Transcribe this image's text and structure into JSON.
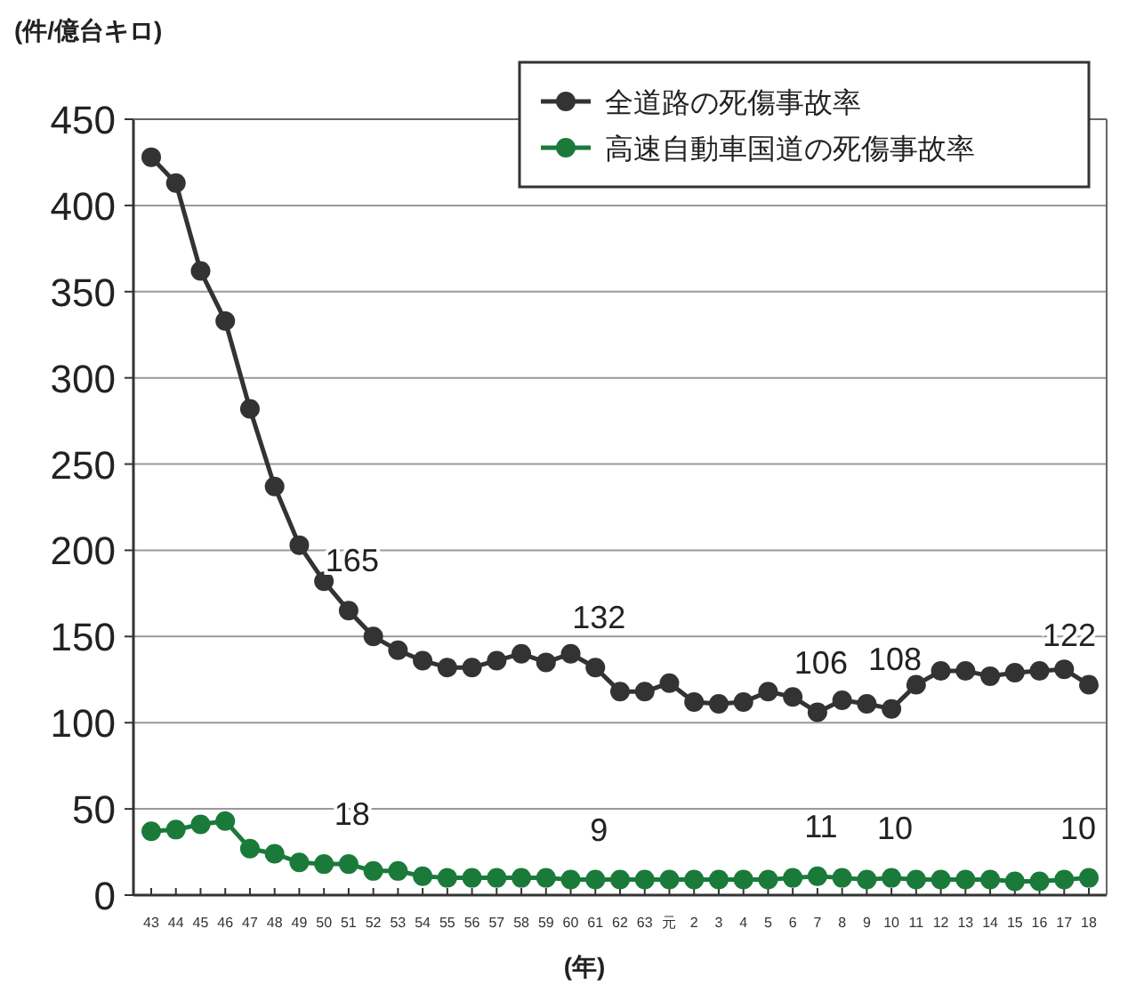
{
  "chart_data": {
    "type": "line",
    "ylabel": "(件/億台キロ)",
    "xlabel": "(年)",
    "categories": [
      "43",
      "44",
      "45",
      "46",
      "47",
      "48",
      "49",
      "50",
      "51",
      "52",
      "53",
      "54",
      "55",
      "56",
      "57",
      "58",
      "59",
      "60",
      "61",
      "62",
      "63",
      "元",
      "2",
      "3",
      "4",
      "5",
      "6",
      "7",
      "8",
      "9",
      "10",
      "11",
      "12",
      "13",
      "14",
      "15",
      "16",
      "17",
      "18"
    ],
    "series": [
      {
        "name": "全道路の死傷事故率",
        "color": "#333333",
        "values": [
          428,
          413,
          362,
          333,
          282,
          237,
          203,
          182,
          165,
          150,
          142,
          136,
          132,
          132,
          136,
          140,
          135,
          140,
          132,
          118,
          118,
          123,
          112,
          111,
          112,
          118,
          115,
          106,
          113,
          111,
          108,
          122,
          130,
          130,
          127,
          129,
          130,
          131,
          122
        ],
        "value_labels": [
          null,
          null,
          null,
          null,
          null,
          null,
          null,
          null,
          "165",
          null,
          null,
          null,
          null,
          null,
          null,
          null,
          null,
          null,
          "132",
          null,
          null,
          null,
          null,
          null,
          null,
          null,
          null,
          "106",
          null,
          null,
          "108",
          null,
          null,
          null,
          null,
          null,
          null,
          null,
          "122"
        ]
      },
      {
        "name": "高速自動車国道の死傷事故率",
        "color": "#1a7a3a",
        "values": [
          37,
          38,
          41,
          43,
          27,
          24,
          19,
          18,
          18,
          14,
          14,
          11,
          10,
          10,
          10,
          10,
          10,
          9,
          9,
          9,
          9,
          9,
          9,
          9,
          9,
          9,
          10,
          11,
          10,
          9,
          10,
          9,
          9,
          9,
          9,
          8,
          8,
          9,
          10
        ],
        "value_labels": [
          null,
          null,
          null,
          null,
          null,
          null,
          null,
          null,
          "18",
          null,
          null,
          null,
          null,
          null,
          null,
          null,
          null,
          null,
          "9",
          null,
          null,
          null,
          null,
          null,
          null,
          null,
          null,
          "11",
          null,
          null,
          "10",
          null,
          null,
          null,
          null,
          null,
          null,
          null,
          "10"
        ]
      }
    ],
    "ylim": [
      0,
      450
    ],
    "yticks": [
      0,
      50,
      100,
      150,
      200,
      250,
      300,
      350,
      400,
      450
    ],
    "grid": "y",
    "legend": "top right",
    "marker": "circle"
  }
}
